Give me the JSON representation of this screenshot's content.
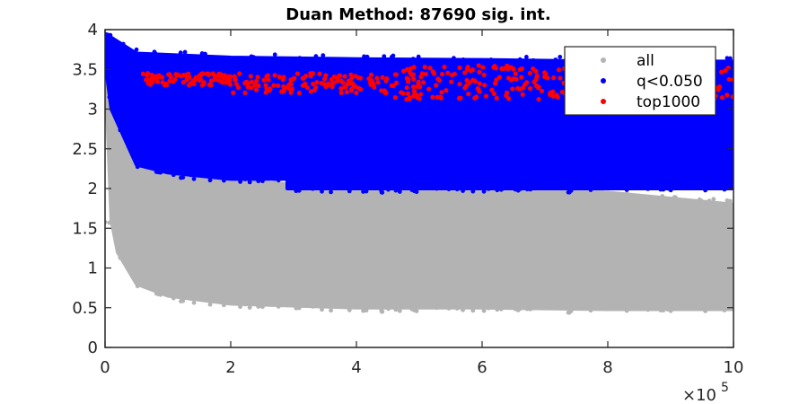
{
  "chart_data": {
    "type": "scatter",
    "title": "Duan Method: 87690 sig. int.",
    "xlabel": "",
    "ylabel": "",
    "xlim": [
      0,
      1000000
    ],
    "ylim": [
      0,
      4
    ],
    "x_ticks": [
      "0",
      "2",
      "4",
      "6",
      "8",
      "10"
    ],
    "y_ticks": [
      "0",
      "0.5",
      "1",
      "1.5",
      "2",
      "2.5",
      "3",
      "3.5",
      "4"
    ],
    "x_multiplier_base": "×10",
    "x_multiplier_exp": "5",
    "grid": false,
    "legend_position": "top-right",
    "series": [
      {
        "name": "all",
        "color": "#b3b3b3",
        "lower_envelope": [
          [
            10000,
            1.6
          ],
          [
            20000,
            1.2
          ],
          [
            50000,
            0.8
          ],
          [
            100000,
            0.65
          ],
          [
            200000,
            0.55
          ],
          [
            400000,
            0.5
          ],
          [
            600000,
            0.5
          ],
          [
            800000,
            0.48
          ],
          [
            1000000,
            0.48
          ]
        ],
        "upper_envelope": [
          [
            0,
            3.6
          ],
          [
            10000,
            3.3
          ],
          [
            50000,
            2.4
          ],
          [
            100000,
            2.2
          ],
          [
            200000,
            2.1
          ],
          [
            400000,
            2.0
          ],
          [
            600000,
            2.0
          ],
          [
            800000,
            1.95
          ],
          [
            1000000,
            1.8
          ]
        ]
      },
      {
        "name": "q<0.050",
        "color": "#0000ff",
        "lower_envelope": [
          [
            0,
            3.6
          ],
          [
            10000,
            3.0
          ],
          [
            50000,
            2.3
          ],
          [
            100000,
            2.2
          ],
          [
            200000,
            2.12
          ],
          [
            290000,
            2.12
          ],
          [
            290000,
            2.0
          ],
          [
            600000,
            2.0
          ],
          [
            800000,
            2.0
          ],
          [
            1000000,
            2.0
          ]
        ],
        "upper_envelope": [
          [
            0,
            3.95
          ],
          [
            50000,
            3.7
          ],
          [
            200000,
            3.65
          ],
          [
            400000,
            3.63
          ],
          [
            600000,
            3.62
          ],
          [
            800000,
            3.6
          ],
          [
            1000000,
            3.6
          ]
        ]
      },
      {
        "name": "top1000",
        "color": "#ff0000",
        "y_range": [
          3.1,
          3.55
        ],
        "x_range": [
          60000,
          1000000
        ]
      }
    ]
  }
}
